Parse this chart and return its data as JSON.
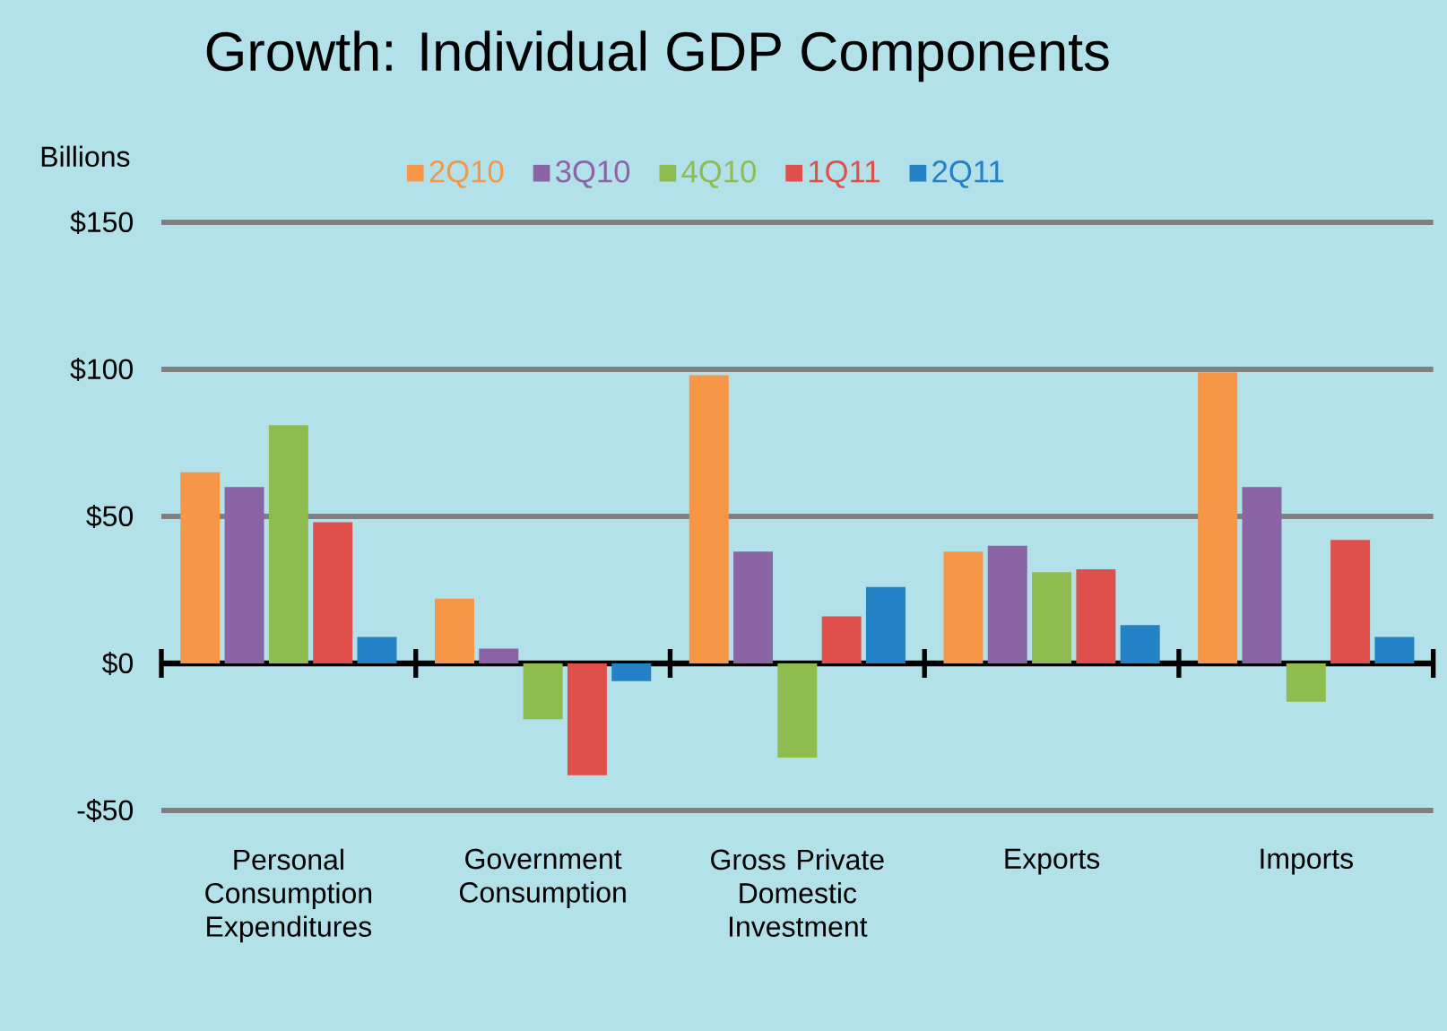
{
  "chart_data": {
    "type": "bar",
    "title": "Growth: Individual GDP Components",
    "ylabel": "Billions",
    "categories": [
      "Personal Consumption Expenditures",
      "Government Consumption",
      "Gross Private Domestic Investment",
      "Exports",
      "Imports"
    ],
    "series": [
      {
        "name": "2Q10",
        "color": "#f79646",
        "values": [
          65,
          22,
          98,
          38,
          99
        ]
      },
      {
        "name": "3Q10",
        "color": "#8b64a5",
        "values": [
          60,
          5,
          38,
          40,
          60
        ]
      },
      {
        "name": "4Q10",
        "color": "#8fbc4f",
        "values": [
          81,
          -19,
          -32,
          31,
          -13
        ]
      },
      {
        "name": "1Q11",
        "color": "#e0504b",
        "values": [
          48,
          -38,
          16,
          32,
          42
        ]
      },
      {
        "name": "2Q11",
        "color": "#2381c5",
        "values": [
          9,
          -6,
          26,
          13,
          9
        ]
      }
    ],
    "ylim": [
      -50,
      150
    ],
    "yticks": [
      {
        "value": -50,
        "label": "-$50"
      },
      {
        "value": 0,
        "label": "$0"
      },
      {
        "value": 50,
        "label": "$50"
      },
      {
        "value": 100,
        "label": "$100"
      },
      {
        "value": 150,
        "label": "$150"
      }
    ],
    "grid": "y",
    "legend": "top"
  }
}
